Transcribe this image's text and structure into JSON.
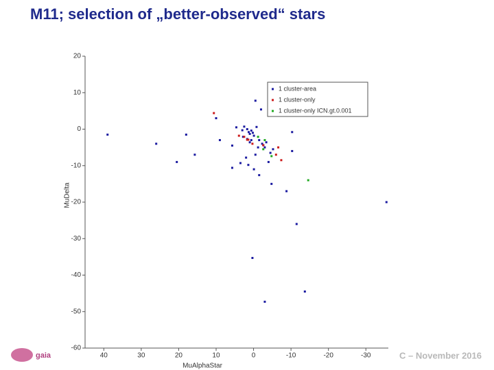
{
  "header": {
    "title": "M11; selection of „better-observed“ stars"
  },
  "footer": {
    "logo": "gaia",
    "text": "C – November 2016"
  },
  "chart_data": {
    "type": "scatter",
    "x_label": "MuAlphaStar",
    "y_label": "MuDelta",
    "xlim": [
      45,
      -36
    ],
    "ylim": [
      -60,
      20
    ],
    "xticks": [
      40,
      30,
      20,
      10,
      0,
      -10,
      -20,
      -30
    ],
    "yticks": [
      20,
      10,
      0,
      -10,
      -20,
      -30,
      -40,
      -50,
      -60
    ],
    "legend": "top-right",
    "series": [
      {
        "name": "1 cluster-area",
        "color": "#1a1aa0",
        "x": [
          39,
          26,
          20.5,
          18,
          15.7,
          10,
          9,
          5.7,
          4.6,
          3,
          2.5,
          1.7,
          1.3,
          1,
          0.6,
          0.2,
          -0.1,
          -0.5,
          -0.8,
          -1.2,
          -1.5,
          -2,
          -2.3,
          -2.6,
          -3,
          -3.4,
          -0.5,
          2,
          3.5,
          5.7,
          1.4,
          -0.1,
          -1.5,
          -4.8,
          -8.8,
          -10.3,
          -10.3,
          -4,
          -4.5,
          -5.2,
          -35.5,
          -11.5,
          0.3,
          -3,
          -13.7,
          2.8,
          1.7,
          1,
          0.6
        ],
        "y": [
          -1.5,
          -4,
          -9,
          -1.5,
          -7,
          3,
          -3,
          -4.5,
          0.5,
          -0.3,
          0.7,
          0,
          -0.8,
          -1.3,
          -0.4,
          -1,
          -1.8,
          7.8,
          0.6,
          -5,
          -3,
          5.4,
          -4,
          -4.4,
          -5,
          -3.6,
          -7,
          -7.8,
          -9.3,
          -10.6,
          -9.8,
          -11,
          -12.6,
          -15,
          -17,
          -0.8,
          -6,
          -9,
          -6.5,
          -5.5,
          -20,
          -26,
          -35.3,
          -47.3,
          -44.5,
          -2.1,
          -2.7,
          -3.6,
          -3
        ]
      },
      {
        "name": "1 cluster-only",
        "color": "#cc1a1a",
        "x": [
          10.6,
          3.9,
          2.5,
          1.4,
          0.3,
          -2.6,
          -6,
          -7.4,
          -6.6,
          1.7
        ],
        "y": [
          4.4,
          -1.8,
          -2.1,
          -2.9,
          -4,
          -4.4,
          -7,
          -8.5,
          -5,
          -2.9
        ]
      },
      {
        "name": "1 cluster-only ICN.gt.0.001",
        "color": "#22aa22",
        "x": [
          -2.6,
          -4.8,
          -14.6,
          -1.2,
          -3
        ],
        "y": [
          -5.5,
          -7.4,
          -14,
          -2.1,
          -3
        ]
      }
    ]
  }
}
